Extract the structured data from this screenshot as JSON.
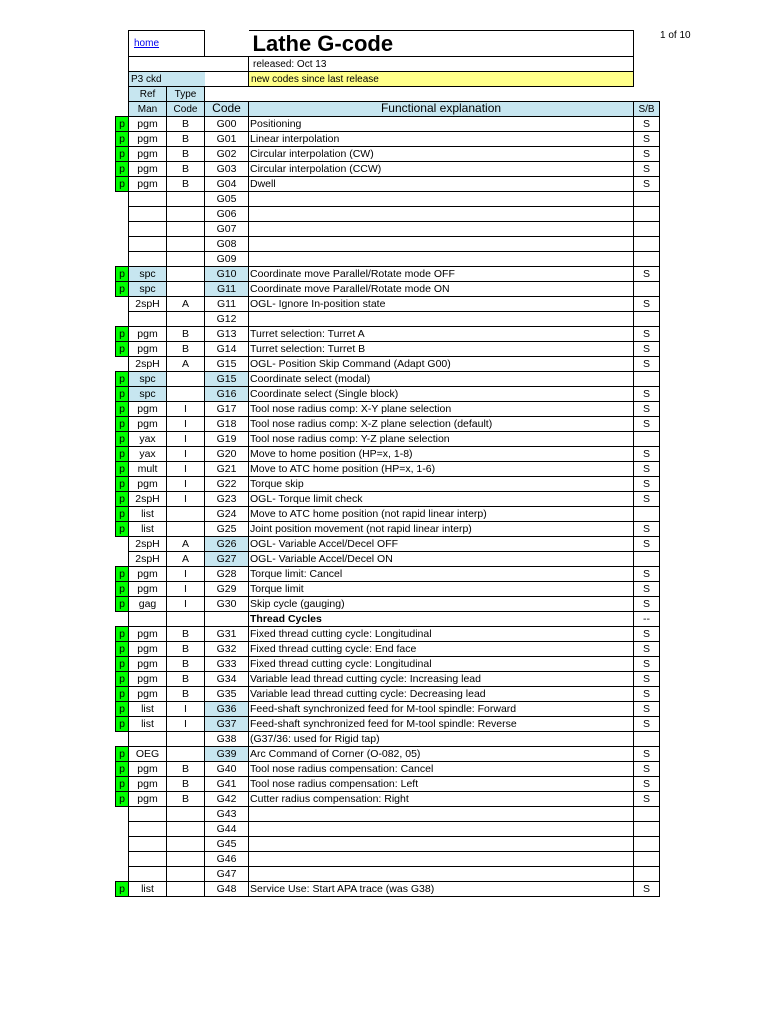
{
  "pageNum": "1 of 10",
  "home": "home",
  "title": "Lathe G-code",
  "released": "released: Oct 13",
  "p3": "P3 ckd",
  "newcodes": "new codes since last release",
  "hRef1": "Ref",
  "hRef2": "Man",
  "hType1": "Type",
  "hType2": "Code",
  "hCode": "Code",
  "hExpl": "Functional explanation",
  "hSB": "S/B",
  "rows": [
    {
      "p": "p",
      "rm": "pgm",
      "tc": "B",
      "cd": "G00",
      "ex": "Positioning",
      "sb": "S"
    },
    {
      "p": "p",
      "rm": "pgm",
      "tc": "B",
      "cd": "G01",
      "ex": "Linear interpolation",
      "sb": "S"
    },
    {
      "p": "p",
      "rm": "pgm",
      "tc": "B",
      "cd": "G02",
      "ex": "Circular interpolation (CW)",
      "sb": "S"
    },
    {
      "p": "p",
      "rm": "pgm",
      "tc": "B",
      "cd": "G03",
      "ex": "Circular interpolation (CCW)",
      "sb": "S"
    },
    {
      "p": "p",
      "rm": "pgm",
      "tc": "B",
      "cd": "G04",
      "ex": "Dwell",
      "sb": "S"
    },
    {
      "p": "",
      "rm": "",
      "tc": "",
      "cd": "G05",
      "ex": "",
      "sb": ""
    },
    {
      "p": "",
      "rm": "",
      "tc": "",
      "cd": "G06",
      "ex": "",
      "sb": ""
    },
    {
      "p": "",
      "rm": "",
      "tc": "",
      "cd": "G07",
      "ex": "",
      "sb": ""
    },
    {
      "p": "",
      "rm": "",
      "tc": "",
      "cd": "G08",
      "ex": "",
      "sb": ""
    },
    {
      "p": "",
      "rm": "",
      "tc": "",
      "cd": "G09",
      "ex": "",
      "sb": ""
    },
    {
      "p": "p",
      "rm": "spc",
      "rmhl": true,
      "tc": "",
      "cd": "G10",
      "cdhl": true,
      "ex": "Coordinate move Parallel/Rotate mode OFF",
      "sb": "S"
    },
    {
      "p": "p",
      "rm": "spc",
      "rmhl": true,
      "tc": "",
      "cd": "G11",
      "cdhl": true,
      "ex": "Coordinate move Parallel/Rotate mode ON",
      "sb": ""
    },
    {
      "p": "",
      "rm": "2spH",
      "tc": "A",
      "cd": "G11",
      "ex": "OGL- Ignore In-position state",
      "sb": "S"
    },
    {
      "p": "",
      "rm": "",
      "tc": "",
      "cd": "G12",
      "ex": "",
      "sb": ""
    },
    {
      "p": "p",
      "rm": "pgm",
      "tc": "B",
      "cd": "G13",
      "ex": "Turret selection: Turret A",
      "sb": "S"
    },
    {
      "p": "p",
      "rm": "pgm",
      "tc": "B",
      "cd": "G14",
      "ex": "Turret selection: Turret B",
      "sb": "S"
    },
    {
      "p": "",
      "rm": "2spH",
      "tc": "A",
      "cd": "G15",
      "ex": "OGL- Position Skip Command (Adapt G00)",
      "sb": "S"
    },
    {
      "p": "p",
      "rm": "spc",
      "rmhl": true,
      "tc": "",
      "cd": "G15",
      "cdhl": true,
      "ex": "Coordinate select (modal)",
      "sb": ""
    },
    {
      "p": "p",
      "rm": "spc",
      "rmhl": true,
      "tc": "",
      "cd": "G16",
      "cdhl": true,
      "ex": "Coordinate select (Single block)",
      "sb": "S"
    },
    {
      "p": "p",
      "rm": "pgm",
      "tc": "I",
      "cd": "G17",
      "ex": "Tool nose radius comp: X-Y plane selection",
      "sb": "S"
    },
    {
      "p": "p",
      "rm": "pgm",
      "tc": "I",
      "cd": "G18",
      "ex": "Tool nose radius comp: X-Z plane selection (default)",
      "sb": "S"
    },
    {
      "p": "p",
      "rm": "yax",
      "tc": "I",
      "cd": "G19",
      "ex": "Tool nose radius comp: Y-Z plane selection",
      "sb": ""
    },
    {
      "p": "p",
      "rm": "yax",
      "tc": "I",
      "cd": "G20",
      "ex": "Move to home position (HP=x, 1-8)",
      "sb": "S"
    },
    {
      "p": "p",
      "rm": "mult",
      "tc": "I",
      "cd": "G21",
      "ex": "Move to ATC home position (HP=x, 1-6)",
      "sb": "S"
    },
    {
      "p": "p",
      "rm": "pgm",
      "tc": "I",
      "cd": "G22",
      "ex": "Torque skip",
      "sb": "S"
    },
    {
      "p": "p",
      "rm": "2spH",
      "tc": "I",
      "cd": "G23",
      "ex": "OGL- Torque limit check",
      "sb": "S"
    },
    {
      "p": "p",
      "rm": "list",
      "tc": "",
      "cd": "G24",
      "ex": "Move to ATC home position (not rapid linear interp)",
      "sb": ""
    },
    {
      "p": "p",
      "rm": "list",
      "tc": "",
      "cd": "G25",
      "ex": "Joint position movement (not rapid linear interp)",
      "sb": "S"
    },
    {
      "p": "",
      "rm": "2spH",
      "tc": "A",
      "cd": "G26",
      "cdhl": true,
      "ex": "OGL- Variable Accel/Decel OFF",
      "sb": "S"
    },
    {
      "p": "",
      "rm": "2spH",
      "tc": "A",
      "cd": "G27",
      "cdhl": true,
      "ex": "OGL- Variable Accel/Decel ON",
      "sb": ""
    },
    {
      "p": "p",
      "rm": "pgm",
      "tc": "I",
      "cd": "G28",
      "ex": "Torque limit: Cancel",
      "sb": "S"
    },
    {
      "p": "p",
      "rm": "pgm",
      "tc": "I",
      "cd": "G29",
      "ex": "Torque limit",
      "sb": "S"
    },
    {
      "p": "p",
      "rm": "gag",
      "tc": "I",
      "cd": "G30",
      "ex": "Skip cycle (gauging)",
      "sb": "S"
    },
    {
      "p": "",
      "rm": "",
      "tc": "",
      "cd": "",
      "ex": "Thread Cycles",
      "bold": true,
      "sb": "--"
    },
    {
      "p": "p",
      "rm": "pgm",
      "tc": "B",
      "cd": "G31",
      "ex": "Fixed thread cutting cycle: Longitudinal",
      "sb": "S"
    },
    {
      "p": "p",
      "rm": "pgm",
      "tc": "B",
      "cd": "G32",
      "ex": "Fixed thread cutting cycle: End face",
      "sb": "S"
    },
    {
      "p": "p",
      "rm": "pgm",
      "tc": "B",
      "cd": "G33",
      "ex": "Fixed thread cutting cycle: Longitudinal",
      "sb": "S"
    },
    {
      "p": "p",
      "rm": "pgm",
      "tc": "B",
      "cd": "G34",
      "ex": "Variable lead thread cutting cycle: Increasing lead",
      "sb": "S"
    },
    {
      "p": "p",
      "rm": "pgm",
      "tc": "B",
      "cd": "G35",
      "ex": "Variable lead thread cutting cycle: Decreasing lead",
      "sb": "S"
    },
    {
      "p": "p",
      "rm": "list",
      "tc": "I",
      "cd": "G36",
      "cdhl": true,
      "ex": "Feed-shaft synchronized feed for M-tool spindle: Forward",
      "sb": "S"
    },
    {
      "p": "p",
      "rm": "list",
      "tc": "I",
      "cd": "G37",
      "cdhl": true,
      "ex": "Feed-shaft synchronized feed for M-tool spindle: Reverse",
      "sb": "S"
    },
    {
      "p": "",
      "rm": "",
      "tc": "",
      "cd": "G38",
      "ex": "  (G37/36: used for Rigid tap)",
      "sb": ""
    },
    {
      "p": "p",
      "rm": "OEG",
      "tc": "",
      "cd": "G39",
      "cdhl": true,
      "ex": "Arc Command of Corner (O-082, 05)",
      "sb": "S"
    },
    {
      "p": "p",
      "rm": "pgm",
      "tc": "B",
      "cd": "G40",
      "ex": "Tool nose radius compensation: Cancel",
      "sb": "S"
    },
    {
      "p": "p",
      "rm": "pgm",
      "tc": "B",
      "cd": "G41",
      "ex": "Tool nose radius compensation: Left",
      "sb": "S"
    },
    {
      "p": "p",
      "rm": "pgm",
      "tc": "B",
      "cd": "G42",
      "ex": "Cutter radius compensation: Right",
      "sb": "S"
    },
    {
      "p": "",
      "rm": "",
      "tc": "",
      "cd": "G43",
      "ex": "",
      "sb": ""
    },
    {
      "p": "",
      "rm": "",
      "tc": "",
      "cd": "G44",
      "ex": "",
      "sb": ""
    },
    {
      "p": "",
      "rm": "",
      "tc": "",
      "cd": "G45",
      "ex": "",
      "sb": ""
    },
    {
      "p": "",
      "rm": "",
      "tc": "",
      "cd": "G46",
      "ex": "",
      "sb": ""
    },
    {
      "p": "",
      "rm": "",
      "tc": "",
      "cd": "G47",
      "ex": "",
      "sb": ""
    },
    {
      "p": "p",
      "rm": "list",
      "tc": "",
      "cd": "G48",
      "ex": "Service Use: Start APA trace (was G38)",
      "sb": "S"
    }
  ]
}
